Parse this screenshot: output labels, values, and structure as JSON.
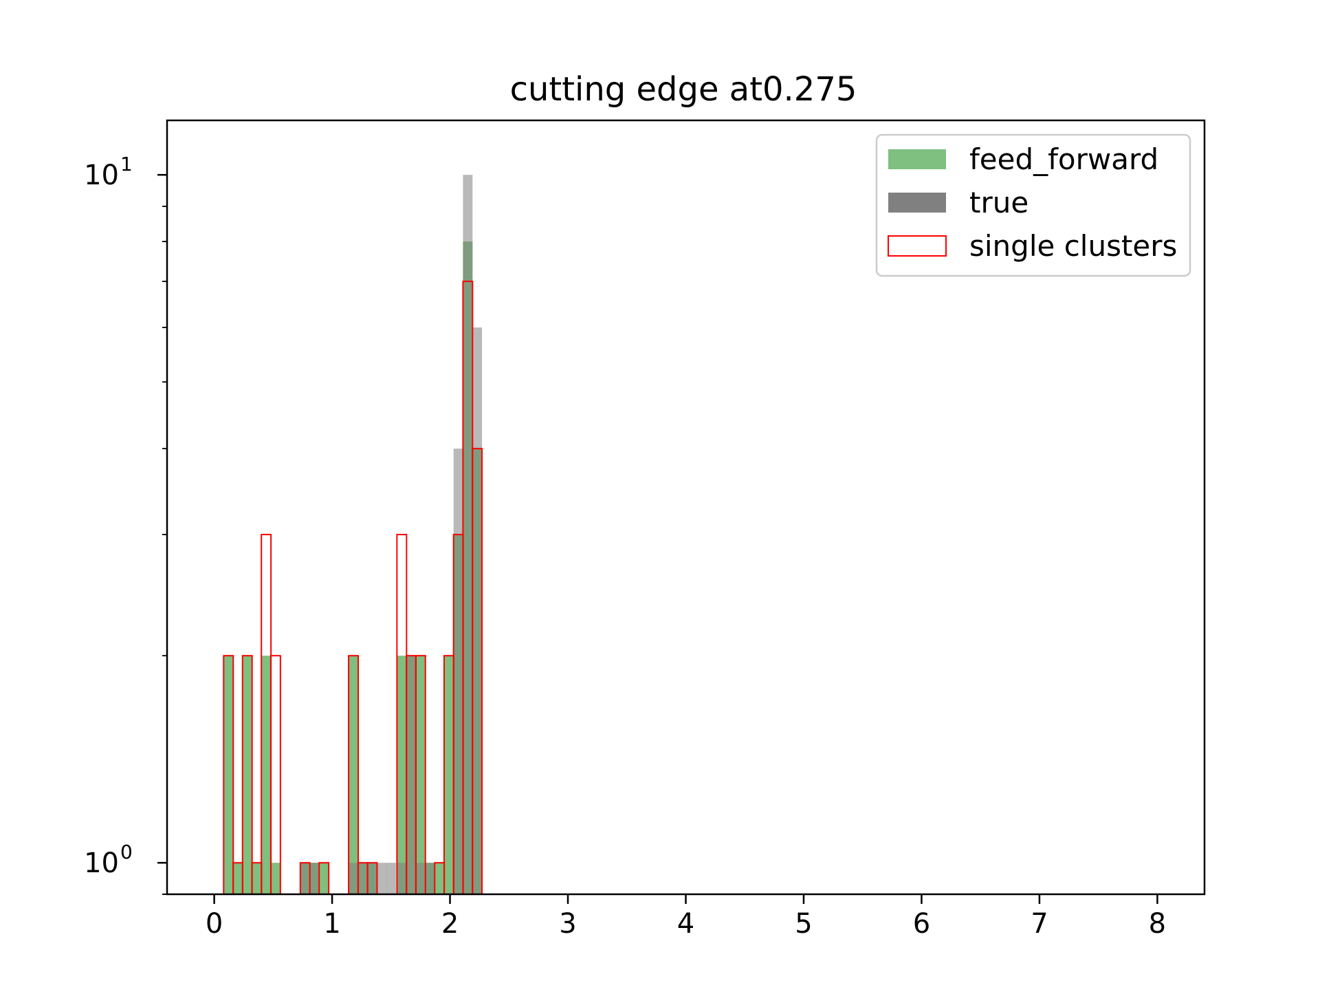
{
  "chart_data": {
    "type": "bar",
    "title": "cutting edge at0.275",
    "xlabel": "",
    "ylabel": "",
    "xlim": [
      -0.4,
      8.4
    ],
    "ylim": [
      0.9,
      12
    ],
    "yscale": "log",
    "x_ticks": [
      0,
      1,
      2,
      3,
      4,
      5,
      6,
      7,
      8
    ],
    "y_ticks": [
      {
        "value": 1,
        "base": "10",
        "exp": "0"
      },
      {
        "value": 10,
        "base": "10",
        "exp": "1"
      }
    ],
    "bin_width": 0.0813,
    "legend": "top-right",
    "grid": false,
    "series": [
      {
        "name": "feed_forward",
        "style": "filled",
        "color": "#7fbf7f",
        "bins": [
          {
            "x0": 0.08,
            "value": 2
          },
          {
            "x0": 0.16,
            "value": 1
          },
          {
            "x0": 0.24,
            "value": 2
          },
          {
            "x0": 0.32,
            "value": 1
          },
          {
            "x0": 0.4,
            "value": 2
          },
          {
            "x0": 0.48,
            "value": 1
          },
          {
            "x0": 0.73,
            "value": 1
          },
          {
            "x0": 0.81,
            "value": 1
          },
          {
            "x0": 0.89,
            "value": 1
          },
          {
            "x0": 1.14,
            "value": 2
          },
          {
            "x0": 1.22,
            "value": 1
          },
          {
            "x0": 1.3,
            "value": 1
          },
          {
            "x0": 1.55,
            "value": 2
          },
          {
            "x0": 1.63,
            "value": 2
          },
          {
            "x0": 1.71,
            "value": 2
          },
          {
            "x0": 1.79,
            "value": 1
          },
          {
            "x0": 1.87,
            "value": 1
          },
          {
            "x0": 1.95,
            "value": 2
          },
          {
            "x0": 2.03,
            "value": 3
          },
          {
            "x0": 2.11,
            "value": 8
          },
          {
            "x0": 2.19,
            "value": 4
          }
        ]
      },
      {
        "name": "true",
        "style": "filled",
        "color": "#808080",
        "bins": [
          {
            "x0": 0.73,
            "value": 1
          },
          {
            "x0": 0.81,
            "value": 1
          },
          {
            "x0": 1.14,
            "value": 1
          },
          {
            "x0": 1.22,
            "value": 1
          },
          {
            "x0": 1.3,
            "value": 1
          },
          {
            "x0": 1.38,
            "value": 1
          },
          {
            "x0": 1.46,
            "value": 1
          },
          {
            "x0": 1.55,
            "value": 1
          },
          {
            "x0": 1.63,
            "value": 2
          },
          {
            "x0": 1.71,
            "value": 1
          },
          {
            "x0": 1.79,
            "value": 1
          },
          {
            "x0": 2.03,
            "value": 4
          },
          {
            "x0": 2.11,
            "value": 10
          },
          {
            "x0": 2.19,
            "value": 6
          }
        ]
      },
      {
        "name": "single clusters",
        "style": "outline",
        "color": "#ff0000",
        "bins": [
          {
            "x0": 0.08,
            "value": 2
          },
          {
            "x0": 0.16,
            "value": 1
          },
          {
            "x0": 0.24,
            "value": 2
          },
          {
            "x0": 0.32,
            "value": 1
          },
          {
            "x0": 0.4,
            "value": 3
          },
          {
            "x0": 0.48,
            "value": 2
          },
          {
            "x0": 0.73,
            "value": 1
          },
          {
            "x0": 0.89,
            "value": 1
          },
          {
            "x0": 1.14,
            "value": 2
          },
          {
            "x0": 1.22,
            "value": 1
          },
          {
            "x0": 1.3,
            "value": 1
          },
          {
            "x0": 1.55,
            "value": 3
          },
          {
            "x0": 1.63,
            "value": 2
          },
          {
            "x0": 1.71,
            "value": 2
          },
          {
            "x0": 1.87,
            "value": 1
          },
          {
            "x0": 1.95,
            "value": 2
          },
          {
            "x0": 2.03,
            "value": 3
          },
          {
            "x0": 2.11,
            "value": 7
          },
          {
            "x0": 2.19,
            "value": 4
          }
        ]
      }
    ]
  }
}
